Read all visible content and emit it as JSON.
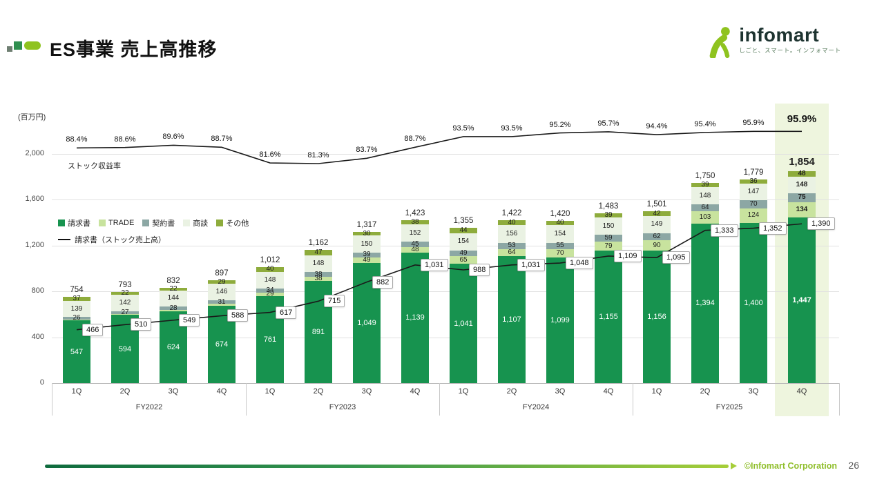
{
  "header": {
    "title": "ES事業 売上高推移",
    "logo_text": "infomart",
    "logo_tagline": "しごと、スマート。インフォマート"
  },
  "footer": {
    "copyright": "©Infomart Corporation",
    "page": "26"
  },
  "chart_data": {
    "type": "bar",
    "stacked": true,
    "title": "ES事業 売上高推移",
    "unit_label": "(百万円)",
    "y_ticks": [
      0,
      400,
      800,
      1200,
      1600,
      2000
    ],
    "ylim": [
      0,
      2000
    ],
    "grid": true,
    "legend_position": "inside-left",
    "colors": {
      "highlight_band": "#EEF5DE",
      "line": "#1a1a1a"
    },
    "legend": [
      {
        "key": "invoice",
        "label": "請求書",
        "color": "#17934F"
      },
      {
        "key": "trade",
        "label": "TRADE",
        "color": "#C8E39E"
      },
      {
        "key": "contract",
        "label": "契約書",
        "color": "#8CA7A4"
      },
      {
        "key": "negotiation",
        "label": "商談",
        "color": "#EAF2E3"
      },
      {
        "key": "other",
        "label": "その他",
        "color": "#8EAC3C"
      }
    ],
    "line_series_label": "請求書（ストック売上高）",
    "rate_line_label": "ストック収益率",
    "groups": [
      "FY2022",
      "FY2023",
      "FY2024",
      "FY2025"
    ],
    "quarters": [
      "1Q",
      "2Q",
      "3Q",
      "4Q"
    ],
    "bars": [
      {
        "fy": "FY2022",
        "q": "1Q",
        "total": 754,
        "segments": {
          "invoice": 547,
          "trade": 5,
          "contract": 26,
          "negotiation": 139,
          "other": 37
        },
        "stock": 466,
        "rate": 88.4
      },
      {
        "fy": "FY2022",
        "q": "2Q",
        "total": 793,
        "segments": {
          "invoice": 594,
          "trade": 8,
          "contract": 27,
          "negotiation": 142,
          "other": 22
        },
        "stock": 510,
        "rate": 88.6
      },
      {
        "fy": "FY2022",
        "q": "3Q",
        "total": 832,
        "segments": {
          "invoice": 624,
          "trade": 14,
          "contract": 28,
          "negotiation": 144,
          "other": 22
        },
        "stock": 549,
        "rate": 89.6
      },
      {
        "fy": "FY2022",
        "q": "4Q",
        "total": 897,
        "segments": {
          "invoice": 674,
          "trade": 17,
          "contract": 31,
          "negotiation": 146,
          "other": 29
        },
        "stock": 588,
        "rate": 88.7
      },
      {
        "fy": "FY2023",
        "q": "1Q",
        "total": 1012,
        "segments": {
          "invoice": 761,
          "trade": 29,
          "contract": 34,
          "negotiation": 148,
          "other": 40
        },
        "stock": 617,
        "rate": 81.6
      },
      {
        "fy": "FY2023",
        "q": "2Q",
        "total": 1162,
        "segments": {
          "invoice": 891,
          "trade": 38,
          "contract": 38,
          "negotiation": 148,
          "other": 47
        },
        "stock": 715,
        "rate": 81.3
      },
      {
        "fy": "FY2023",
        "q": "3Q",
        "total": 1317,
        "segments": {
          "invoice": 1049,
          "trade": 49,
          "contract": 39,
          "negotiation": 150,
          "other": 30
        },
        "stock": 882,
        "rate": 83.7
      },
      {
        "fy": "FY2023",
        "q": "4Q",
        "total": 1423,
        "segments": {
          "invoice": 1139,
          "trade": 48,
          "contract": 45,
          "negotiation": 152,
          "other": 38
        },
        "stock": 1031,
        "rate": 88.7
      },
      {
        "fy": "FY2024",
        "q": "1Q",
        "total": 1355,
        "segments": {
          "invoice": 1041,
          "trade": 65,
          "contract": 49,
          "negotiation": 154,
          "other": 44
        },
        "stock": 988,
        "rate": 93.5
      },
      {
        "fy": "FY2024",
        "q": "2Q",
        "total": 1422,
        "segments": {
          "invoice": 1107,
          "trade": 64,
          "contract": 53,
          "negotiation": 156,
          "other": 40
        },
        "stock": 1031,
        "rate": 93.5
      },
      {
        "fy": "FY2024",
        "q": "3Q",
        "total": 1420,
        "segments": {
          "invoice": 1099,
          "trade": 70,
          "contract": 55,
          "negotiation": 154,
          "other": 40
        },
        "stock": 1048,
        "rate": 95.2
      },
      {
        "fy": "FY2024",
        "q": "4Q",
        "total": 1483,
        "segments": {
          "invoice": 1155,
          "trade": 79,
          "contract": 59,
          "negotiation": 150,
          "other": 39
        },
        "stock": 1109,
        "rate": 95.7
      },
      {
        "fy": "FY2025",
        "q": "1Q",
        "total": 1501,
        "segments": {
          "invoice": 1156,
          "trade": 90,
          "contract": 62,
          "negotiation": 149,
          "other": 42
        },
        "stock": 1095,
        "rate": 94.4
      },
      {
        "fy": "FY2025",
        "q": "2Q",
        "total": 1750,
        "segments": {
          "invoice": 1394,
          "trade": 103,
          "contract": 64,
          "negotiation": 148,
          "other": 39
        },
        "stock": 1333,
        "rate": 95.4
      },
      {
        "fy": "FY2025",
        "q": "3Q",
        "total": 1779,
        "segments": {
          "invoice": 1400,
          "trade": 124,
          "contract": 70,
          "negotiation": 147,
          "other": 36
        },
        "stock": 1352,
        "rate": 95.9
      },
      {
        "fy": "FY2025",
        "q": "4Q",
        "total": 1854,
        "segments": {
          "invoice": 1447,
          "trade": 134,
          "contract": 75,
          "negotiation": 148,
          "other": 48
        },
        "stock": 1390,
        "rate": 95.9,
        "highlight": true
      }
    ]
  }
}
